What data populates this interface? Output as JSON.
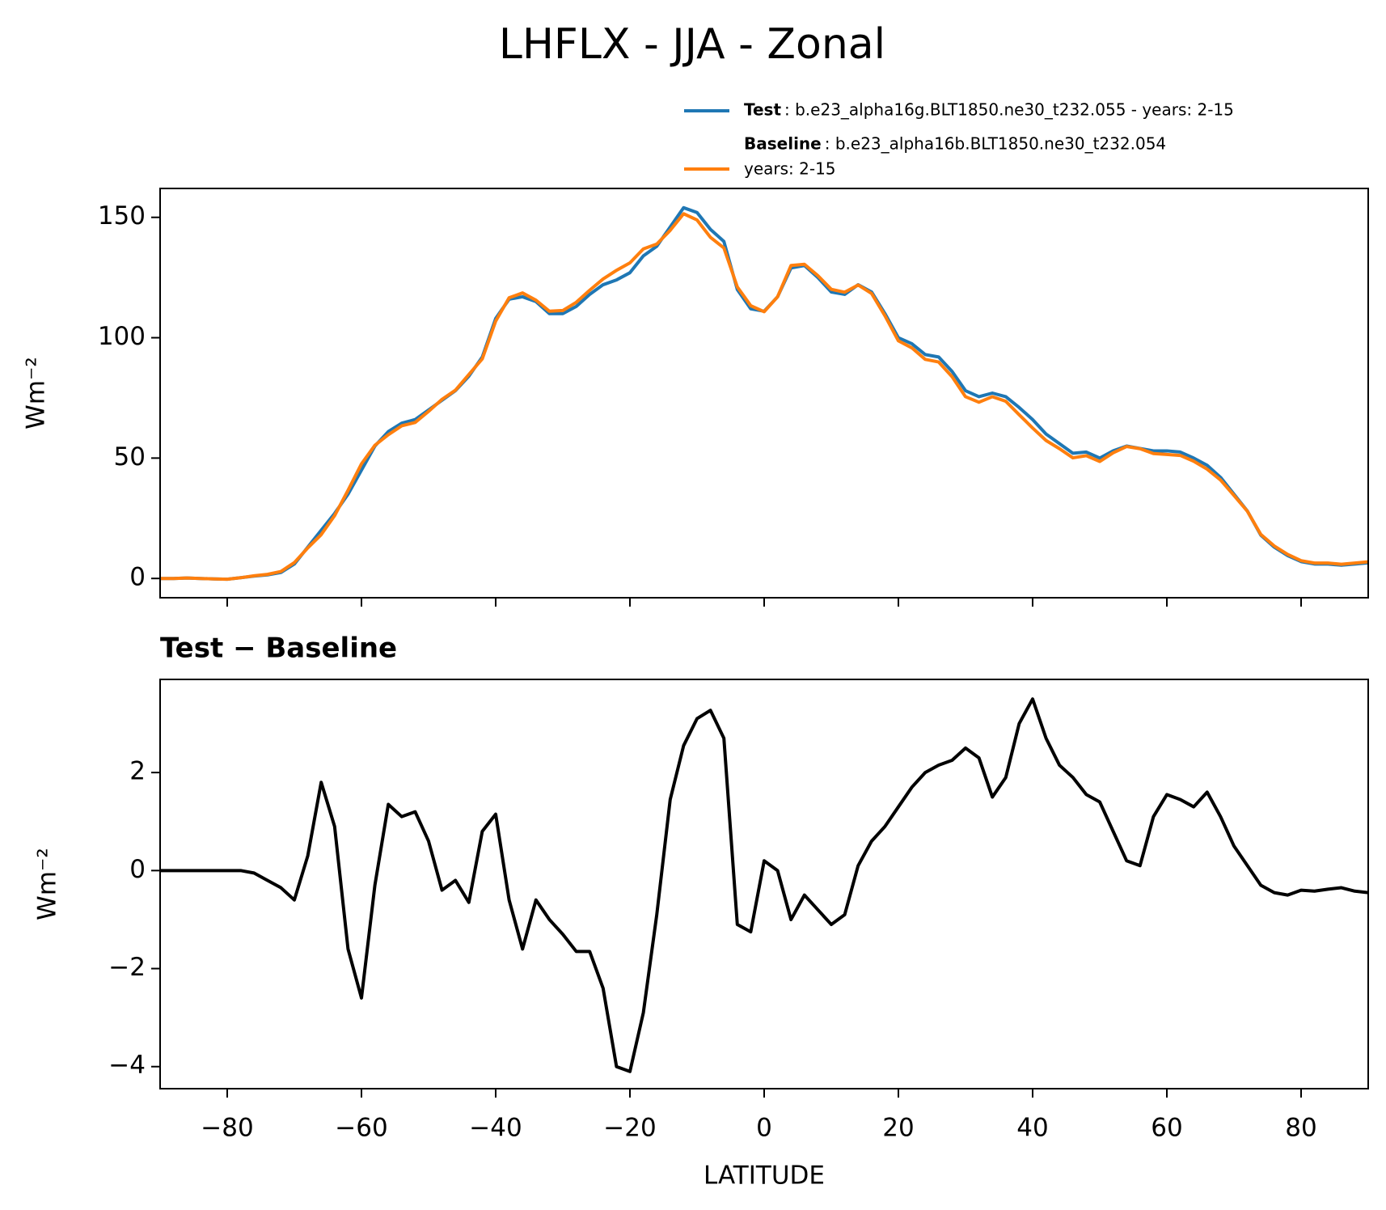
{
  "chart_data": [
    {
      "type": "line",
      "title": "LHFLX - JJA - Zonal",
      "ylabel": "Wm⁻²",
      "x": [
        -90,
        -88,
        -86,
        -84,
        -82,
        -80,
        -78,
        -76,
        -74,
        -72,
        -70,
        -68,
        -66,
        -64,
        -62,
        -60,
        -58,
        -56,
        -54,
        -52,
        -50,
        -48,
        -46,
        -44,
        -42,
        -40,
        -38,
        -36,
        -34,
        -32,
        -30,
        -28,
        -26,
        -24,
        -22,
        -20,
        -18,
        -16,
        -14,
        -12,
        -10,
        -8,
        -6,
        -4,
        -2,
        0,
        2,
        4,
        6,
        8,
        10,
        12,
        14,
        16,
        18,
        20,
        22,
        24,
        26,
        28,
        30,
        32,
        34,
        36,
        38,
        40,
        42,
        44,
        46,
        48,
        50,
        52,
        54,
        56,
        58,
        60,
        62,
        64,
        66,
        68,
        70,
        72,
        74,
        76,
        78,
        80,
        82,
        84,
        86,
        88,
        90
      ],
      "series": [
        {
          "name": "Test",
          "description": [
            ": b.e23_alpha16g.BLT1850.ne30_t232.055 - years: 2-15"
          ],
          "color": "#1f77b4",
          "values": [
            0,
            0,
            0.2,
            0,
            -0.2,
            -0.3,
            0.3,
            1,
            1.5,
            2.5,
            6,
            13,
            20,
            27,
            35,
            45,
            55,
            61,
            64.5,
            66,
            70,
            74,
            78,
            84,
            92,
            108,
            116,
            117,
            115,
            110,
            110,
            113,
            118,
            122,
            124,
            127,
            134,
            138,
            146,
            154,
            152,
            145,
            140,
            120,
            112,
            111,
            117,
            129,
            130,
            125,
            119,
            118,
            122,
            119,
            110,
            100,
            97.5,
            93,
            92,
            86,
            78,
            75.5,
            77,
            75.5,
            71,
            66,
            60,
            56,
            52,
            52.5,
            50,
            53,
            55,
            54,
            53,
            53,
            52.5,
            50,
            47,
            42,
            35,
            28,
            18,
            13,
            9.5,
            7,
            6,
            6,
            5.5,
            6,
            6.5
          ]
        },
        {
          "name": "Baseline",
          "description": [
            ": b.e23_alpha16b.BLT1850.ne30_t232.054",
            "years: 2-15"
          ],
          "color": "#ff7f0e",
          "values": [
            0,
            0,
            0.2,
            0,
            -0.2,
            -0.3,
            0.3,
            1.1,
            1.7,
            2.9,
            6.6,
            12.7,
            18.2,
            26.1,
            36.6,
            47.6,
            55.3,
            59.7,
            63.4,
            64.8,
            69.4,
            74.4,
            78.2,
            84.7,
            91.2,
            106.9,
            116.6,
            118.6,
            115.6,
            111,
            111.3,
            114.7,
            119.7,
            124.4,
            128,
            131.1,
            136.9,
            138.9,
            144.6,
            151.5,
            148.9,
            141.7,
            137.3,
            121.1,
            113.3,
            110.8,
            117,
            130,
            130.5,
            125.8,
            120.1,
            118.9,
            121.9,
            118.4,
            109.1,
            98.7,
            95.8,
            91,
            89.9,
            83.8,
            75.5,
            73.2,
            75.5,
            73.6,
            68,
            62.5,
            57.3,
            53.9,
            50.1,
            51,
            48.6,
            52.2,
            54.8,
            53.9,
            51.9,
            51.5,
            51.1,
            48.7,
            45.4,
            40.9,
            34.5,
            27.9,
            18.3,
            13.5,
            10,
            7.4,
            6.4,
            6.4,
            5.9,
            6.4,
            6.9
          ]
        }
      ],
      "xlim": [
        -90,
        90
      ],
      "ylim": [
        -8,
        162
      ],
      "xticks": [
        -80,
        -60,
        -40,
        -20,
        0,
        20,
        40,
        60,
        80
      ],
      "yticks": [
        0,
        50,
        100,
        150
      ]
    },
    {
      "type": "line",
      "title": "Test − Baseline",
      "ylabel": "Wm⁻²",
      "xlabel": "LATITUDE",
      "x": [
        -90,
        -88,
        -86,
        -84,
        -82,
        -80,
        -78,
        -76,
        -74,
        -72,
        -70,
        -68,
        -66,
        -64,
        -62,
        -60,
        -58,
        -56,
        -54,
        -52,
        -50,
        -48,
        -46,
        -44,
        -42,
        -40,
        -38,
        -36,
        -34,
        -32,
        -30,
        -28,
        -26,
        -24,
        -22,
        -20,
        -18,
        -16,
        -14,
        -12,
        -10,
        -8,
        -6,
        -4,
        -2,
        0,
        2,
        4,
        6,
        8,
        10,
        12,
        14,
        16,
        18,
        20,
        22,
        24,
        26,
        28,
        30,
        32,
        34,
        36,
        38,
        40,
        42,
        44,
        46,
        48,
        50,
        52,
        54,
        56,
        58,
        60,
        62,
        64,
        66,
        68,
        70,
        72,
        74,
        76,
        78,
        80,
        82,
        84,
        86,
        88,
        90
      ],
      "series": [
        {
          "color": "#000000",
          "values": [
            0,
            0,
            0,
            0,
            0,
            0,
            0,
            -0.05,
            -0.2,
            -0.35,
            -0.6,
            0.3,
            1.8,
            0.9,
            -1.6,
            -2.6,
            -0.3,
            1.35,
            1.1,
            1.2,
            0.6,
            -0.4,
            -0.2,
            -0.65,
            0.8,
            1.15,
            -0.6,
            -1.6,
            -0.6,
            -1,
            -1.3,
            -1.65,
            -1.65,
            -2.4,
            -4,
            -4.1,
            -2.9,
            -0.9,
            1.45,
            2.55,
            3.1,
            3.27,
            2.7,
            -1.1,
            -1.25,
            0.2,
            0,
            -1,
            -0.5,
            -0.8,
            -1.1,
            -0.9,
            0.1,
            0.6,
            0.9,
            1.3,
            1.7,
            2,
            2.15,
            2.25,
            2.5,
            2.3,
            1.5,
            1.9,
            3,
            3.5,
            2.7,
            2.15,
            1.9,
            1.55,
            1.4,
            0.8,
            0.2,
            0.1,
            1.1,
            1.55,
            1.45,
            1.3,
            1.6,
            1.1,
            0.5,
            0.1,
            -0.3,
            -0.45,
            -0.5,
            -0.4,
            -0.42,
            -0.38,
            -0.35,
            -0.42,
            -0.45
          ]
        }
      ],
      "xlim": [
        -90,
        90
      ],
      "ylim": [
        -4.45,
        3.9
      ],
      "xticks": [
        {
          "value": -80,
          "label": "−80"
        },
        {
          "value": -60,
          "label": "−60"
        },
        {
          "value": -40,
          "label": "−40"
        },
        {
          "value": -20,
          "label": "−20"
        },
        0,
        20,
        40,
        60,
        80
      ],
      "yticks": [
        {
          "value": -4,
          "label": "−4"
        },
        {
          "value": -2,
          "label": "−2"
        },
        0,
        2
      ]
    }
  ]
}
